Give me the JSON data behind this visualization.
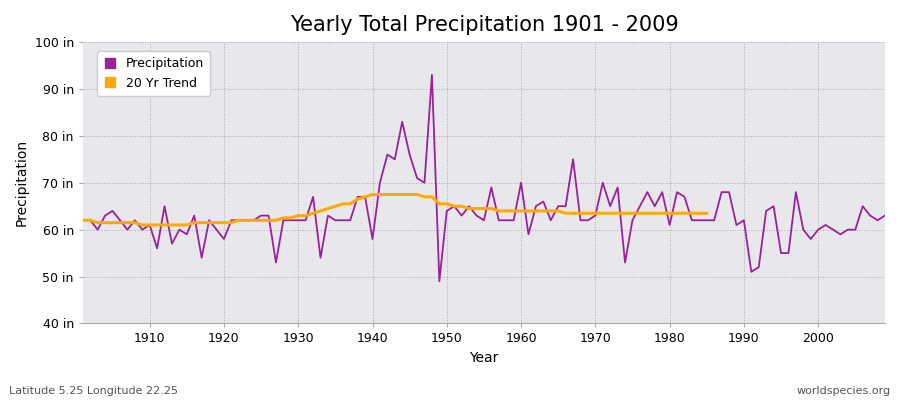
{
  "title": "Yearly Total Precipitation 1901 - 2009",
  "xlabel": "Year",
  "ylabel": "Precipitation",
  "subtitle_left": "Latitude 5.25 Longitude 22.25",
  "watermark": "worldspecies.org",
  "ylim": [
    40,
    100
  ],
  "yticks": [
    40,
    50,
    60,
    70,
    80,
    90,
    100
  ],
  "ytick_labels": [
    "40 in",
    "50 in",
    "60 in",
    "70 in",
    "80 in",
    "90 in",
    "100 in"
  ],
  "xlim": [
    1901,
    2009
  ],
  "xticks": [
    1910,
    1920,
    1930,
    1940,
    1950,
    1960,
    1970,
    1980,
    1990,
    2000
  ],
  "precip_color": "#992299",
  "trend_color": "#FFAA00",
  "fig_bg_color": "#FFFFFF",
  "plot_bg_color": "#E8E8EC",
  "title_fontsize": 15,
  "axis_label_fontsize": 10,
  "tick_fontsize": 9,
  "legend_fontsize": 9,
  "years": [
    1901,
    1902,
    1903,
    1904,
    1905,
    1906,
    1907,
    1908,
    1909,
    1910,
    1911,
    1912,
    1913,
    1914,
    1915,
    1916,
    1917,
    1918,
    1919,
    1920,
    1921,
    1922,
    1923,
    1924,
    1925,
    1926,
    1927,
    1928,
    1929,
    1930,
    1931,
    1932,
    1933,
    1934,
    1935,
    1936,
    1937,
    1938,
    1939,
    1940,
    1941,
    1942,
    1943,
    1944,
    1945,
    1946,
    1947,
    1948,
    1949,
    1950,
    1951,
    1952,
    1953,
    1954,
    1955,
    1956,
    1957,
    1958,
    1959,
    1960,
    1961,
    1962,
    1963,
    1964,
    1965,
    1966,
    1967,
    1968,
    1969,
    1970,
    1971,
    1972,
    1973,
    1974,
    1975,
    1976,
    1977,
    1978,
    1979,
    1980,
    1981,
    1982,
    1983,
    1984,
    1985,
    1986,
    1987,
    1988,
    1989,
    1990,
    1991,
    1992,
    1993,
    1994,
    1995,
    1996,
    1997,
    1998,
    1999,
    2000,
    2001,
    2002,
    2003,
    2004,
    2005,
    2006,
    2007,
    2008,
    2009
  ],
  "precipitation": [
    62,
    62,
    60,
    63,
    64,
    62,
    60,
    62,
    60,
    61,
    56,
    65,
    57,
    60,
    59,
    63,
    54,
    62,
    60,
    58,
    62,
    62,
    62,
    62,
    63,
    63,
    53,
    62,
    62,
    62,
    62,
    67,
    54,
    63,
    62,
    62,
    62,
    67,
    67,
    58,
    70,
    76,
    75,
    83,
    76,
    71,
    70,
    93,
    49,
    64,
    65,
    63,
    65,
    63,
    62,
    69,
    62,
    62,
    62,
    70,
    59,
    65,
    66,
    62,
    65,
    65,
    75,
    62,
    62,
    63,
    70,
    65,
    69,
    53,
    62,
    65,
    68,
    65,
    68,
    61,
    68,
    67,
    62,
    62,
    62,
    62,
    68,
    68,
    61,
    62,
    51,
    52,
    64,
    65,
    55,
    55,
    68,
    60,
    58,
    60,
    61,
    60,
    59,
    60,
    60,
    65,
    63,
    62,
    63
  ],
  "trend": [
    62.0,
    62.0,
    61.5,
    61.5,
    61.5,
    61.5,
    61.5,
    61.5,
    61.0,
    61.0,
    61.0,
    61.0,
    61.0,
    61.0,
    61.0,
    61.5,
    61.5,
    61.5,
    61.5,
    61.5,
    61.5,
    62.0,
    62.0,
    62.0,
    62.0,
    62.0,
    62.0,
    62.5,
    62.5,
    63.0,
    63.0,
    63.5,
    64.0,
    64.5,
    65.0,
    65.5,
    65.5,
    66.5,
    67.0,
    67.5,
    67.5,
    67.5,
    67.5,
    67.5,
    67.5,
    67.5,
    67.0,
    67.0,
    65.5,
    65.5,
    65.0,
    65.0,
    64.5,
    64.5,
    64.5,
    64.5,
    64.0,
    64.0,
    64.0,
    64.0,
    64.0,
    64.0,
    64.0,
    64.0,
    64.0,
    63.5,
    63.5,
    63.5,
    63.5,
    63.5,
    63.5,
    63.5,
    63.5,
    63.5,
    63.5,
    63.5,
    63.5,
    63.5,
    63.5,
    63.5,
    63.5,
    63.5,
    63.5,
    63.5,
    63.5,
    null,
    null,
    null,
    null,
    null,
    null,
    null,
    null,
    null,
    null,
    null,
    null,
    null,
    null,
    null,
    null,
    null,
    null,
    null,
    null,
    null,
    null,
    null,
    null
  ]
}
